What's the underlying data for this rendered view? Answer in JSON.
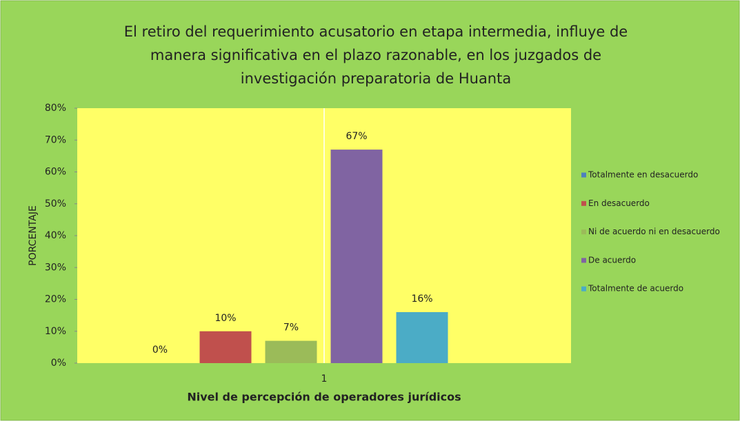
{
  "chart_data": {
    "type": "bar",
    "title": [
      "El retiro del requerimiento acusatorio en etapa intermedia, influye de",
      "manera significativa en el plazo razonable, en los juzgados de",
      "investigación preparatoria de Huanta"
    ],
    "x_label": "Nivel de percepción de operadores jurídicos",
    "y_label": "PORCENTAJE",
    "categories": [
      "1"
    ],
    "series": [
      {
        "name": "Totalmente en desacuerdo",
        "color": "#4f81bd",
        "values": [
          0
        ],
        "value_labels": [
          "0%"
        ]
      },
      {
        "name": "En desacuerdo",
        "color": "#c0504d",
        "values": [
          10
        ],
        "value_labels": [
          "10%"
        ]
      },
      {
        "name": "Ni de acuerdo ni en desacuerdo",
        "color": "#9bbb59",
        "values": [
          7
        ],
        "value_labels": [
          "7%"
        ]
      },
      {
        "name": "De acuerdo",
        "color": "#8064a2",
        "values": [
          67
        ],
        "value_labels": [
          "67%"
        ]
      },
      {
        "name": "Totalmente de acuerdo",
        "color": "#4bacc6",
        "values": [
          16
        ],
        "value_labels": [
          "16%"
        ]
      }
    ],
    "ylim": [
      0,
      80
    ],
    "yticks": [
      {
        "value": 0,
        "label": "0%"
      },
      {
        "value": 10,
        "label": "10%"
      },
      {
        "value": 20,
        "label": "20%"
      },
      {
        "value": 30,
        "label": "30%"
      },
      {
        "value": 40,
        "label": "40%"
      },
      {
        "value": 50,
        "label": "50%"
      },
      {
        "value": 60,
        "label": "60%"
      },
      {
        "value": 70,
        "label": "70%"
      },
      {
        "value": 80,
        "label": "80%"
      }
    ],
    "legend": "right"
  }
}
